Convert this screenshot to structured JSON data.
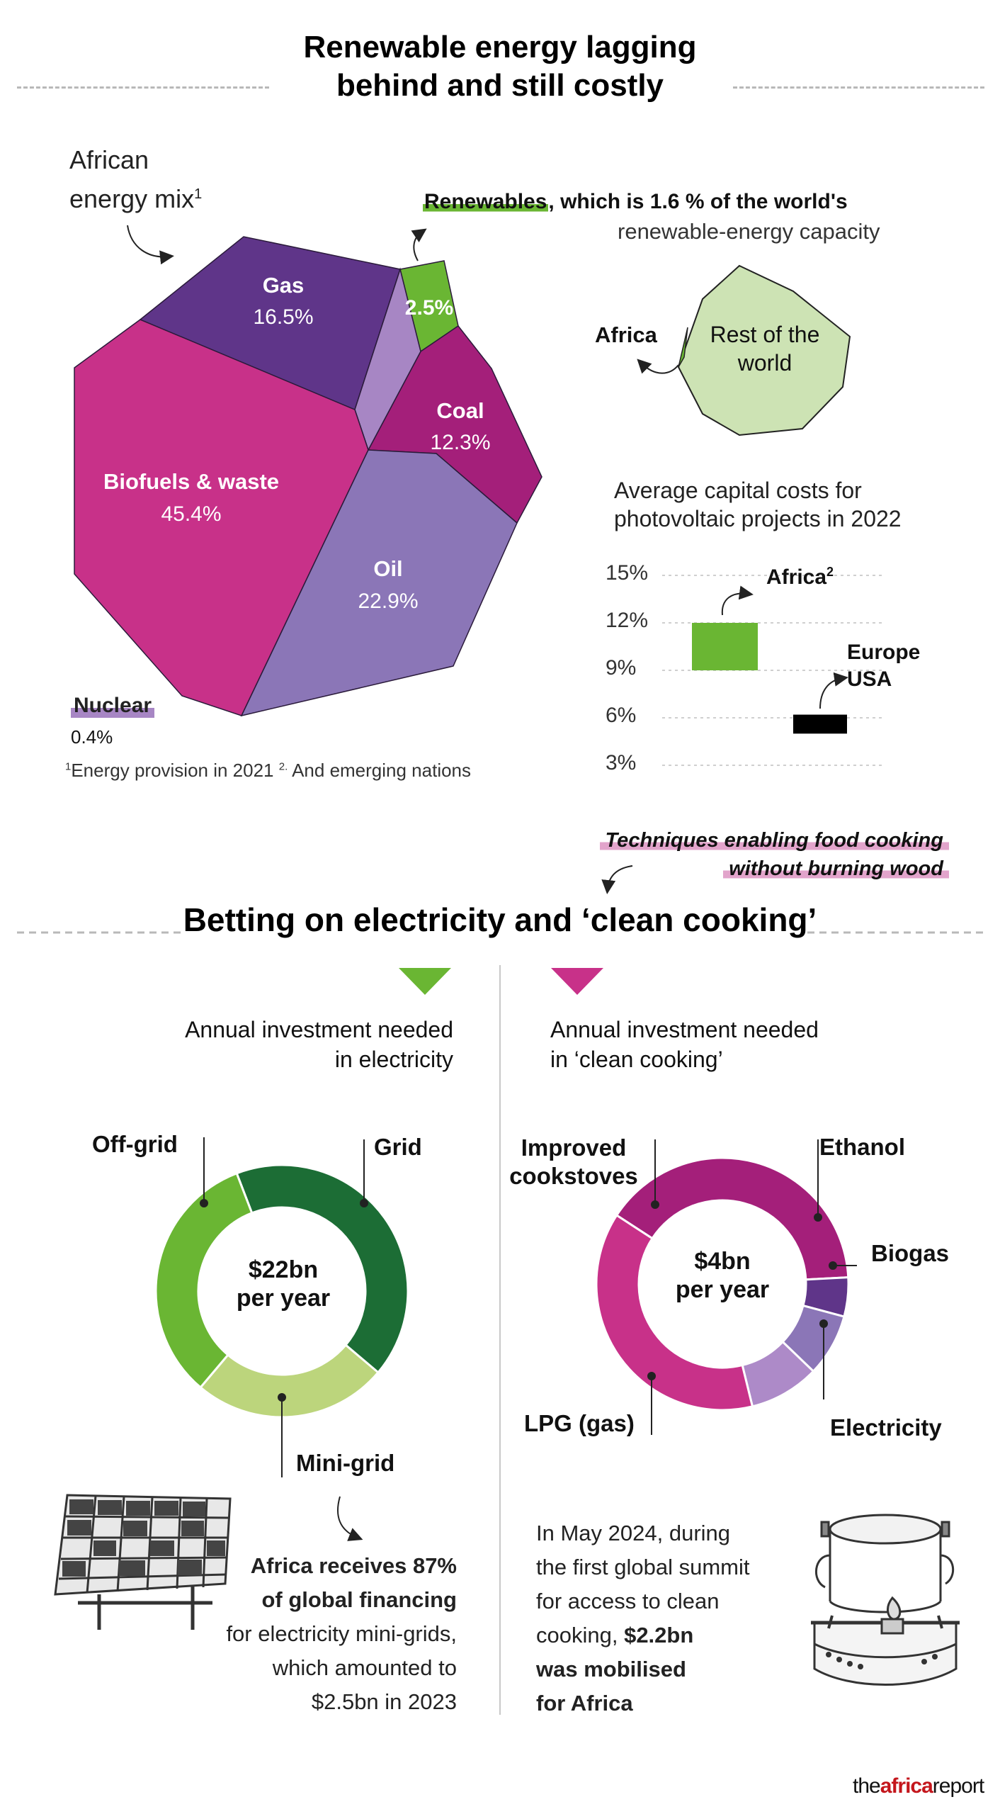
{
  "header": {
    "title_line1": "Renewable energy lagging",
    "title_line2": "behind and still costly"
  },
  "energy_mix": {
    "label_line1": "African",
    "label_line2": "energy mix",
    "label_sup": "1",
    "footnote": "Energy provision in 2021",
    "footnote_sup1": "1",
    "footnote_sup2": "2.",
    "footnote2": "And emerging nations"
  },
  "renewables_note": {
    "highlight": "Renewables",
    "rest": ", which is 1.6 % of the world's",
    "line2": "renewable-energy capacity",
    "africa_label": "Africa",
    "rest_label_line1": "Rest of the",
    "rest_label_line2": "world"
  },
  "pv_costs": {
    "title_line1": "Average capital costs for",
    "title_line2": "photovoltaic projects in 2022"
  },
  "section2": {
    "annotation_line1": "Techniques enabling food cooking",
    "annotation_line2": "without burning wood",
    "title": "Betting on electricity and ‘clean cooking’"
  },
  "electricity": {
    "heading_line1": "Annual investment needed",
    "heading_line2": "in electricity",
    "center_line1": "$22bn",
    "center_line2": "per year",
    "caption_bold1": "Africa receives 87%",
    "caption_bold2": "of global financing",
    "caption_line3": "for electricity mini-grids,",
    "caption_line4": "which amounted to",
    "caption_line5": "$2.5bn in 2023"
  },
  "cooking": {
    "heading_line1": "Annual investment needed",
    "heading_line2": "in ‘clean cooking’",
    "center_line1": "$4bn",
    "center_line2": "per year",
    "caption_line1": "In May 2024, during",
    "caption_line2": "the first global summit",
    "caption_line3": "for access to clean",
    "caption_line4_a": "cooking, ",
    "caption_line4_b": "$2.2bn",
    "caption_bold5": "was mobilised",
    "caption_bold6": "for Africa"
  },
  "brand": {
    "the": "the",
    "africa": "africa",
    "report": "report"
  },
  "icons": [
    "solar-panel-icon",
    "cookstove-icon",
    "green-triangle-icon",
    "pink-triangle-icon"
  ],
  "colors": {
    "gas": "#5f3589",
    "renewables": "#6ab633",
    "coal": "#a41f7a",
    "oil": "#8b76b7",
    "biofuels": "#c83189",
    "nuclear": "#a786c4",
    "grid": "#1c6d35",
    "offgrid": "#6ab633",
    "minigrid": "#bcd57c",
    "improved": "#a41f7a",
    "ethanol": "#5f3589",
    "biogas": "#8b76b7",
    "electricity_cook": "#ad8ac8",
    "lpg": "#c83189",
    "rest_world": "#cde3b4"
  },
  "chart_data": [
    {
      "type": "pie",
      "title": "African energy mix",
      "categories": [
        "Biofuels & waste",
        "Oil",
        "Gas",
        "Coal",
        "Renewables",
        "Nuclear"
      ],
      "values": [
        45.4,
        22.9,
        16.5,
        12.3,
        2.5,
        0.4
      ],
      "value_labels": [
        "45.4%",
        "22.9%",
        "16.5%",
        "12.3%",
        "2.5%",
        "0.4%"
      ],
      "labels": {
        "biofuels": "Biofuels & waste",
        "oil": "Oil",
        "gas": "Gas",
        "coal": "Coal",
        "renewables": "Renewables",
        "nuclear": "Nuclear"
      }
    },
    {
      "type": "pie",
      "title": "Renewable-energy capacity",
      "categories": [
        "Africa",
        "Rest of the world"
      ],
      "values": [
        1.6,
        98.4
      ]
    },
    {
      "type": "bar",
      "title": "Average capital costs for photovoltaic projects in 2022",
      "categories": [
        "Africa",
        "Europe USA"
      ],
      "labels": {
        "africa": "Africa",
        "africa_sup": "2",
        "europe_line1": "Europe",
        "europe_line2": "USA"
      },
      "ranges": [
        [
          9,
          12
        ],
        [
          5,
          6.2
        ]
      ],
      "ylim": [
        3,
        15
      ],
      "yticks": [
        15,
        12,
        9,
        6,
        3
      ],
      "ytick_labels": [
        "15%",
        "12%",
        "9%",
        "6%",
        "3%"
      ],
      "grid": true
    },
    {
      "type": "pie",
      "title": "Annual investment needed in electricity",
      "categories": [
        "Grid",
        "Mini-grid",
        "Off-grid"
      ],
      "values": [
        42,
        25,
        33
      ],
      "labels": {
        "grid": "Grid",
        "minigrid": "Mini-grid",
        "offgrid": "Off-grid"
      }
    },
    {
      "type": "pie",
      "title": "Annual investment needed in ‘clean cooking’",
      "categories": [
        "Improved cookstoves",
        "Ethanol",
        "Biogas",
        "Electricity",
        "LPG (gas)"
      ],
      "values": [
        40,
        5,
        8,
        9,
        38
      ],
      "labels": {
        "improved_line1": "Improved",
        "improved_line2": "cookstoves",
        "ethanol": "Ethanol",
        "biogas": "Biogas",
        "electricity": "Electricity",
        "lpg": "LPG (gas)"
      }
    }
  ]
}
